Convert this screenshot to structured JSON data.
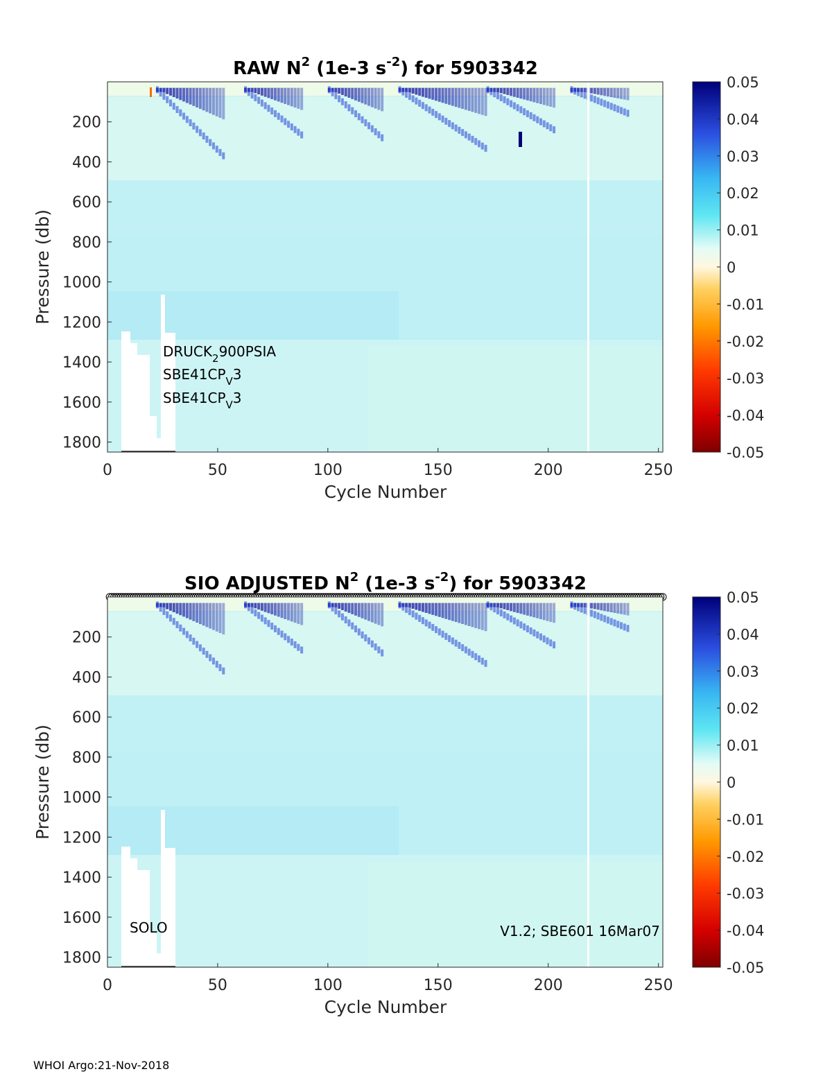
{
  "chart_data": [
    {
      "type": "heatmap",
      "title": {
        "prefix": "RAW N",
        "sup1": "2",
        "mid": " (1e-3 s",
        "sup2": "-2",
        "suffix": ") for 5903342"
      },
      "xlabel": "Cycle Number",
      "ylabel": "Pressure (db)",
      "xlim": [
        0,
        252
      ],
      "ylim": [
        1850,
        0
      ],
      "xticks": [
        "0",
        "50",
        "100",
        "150",
        "200",
        "250"
      ],
      "yticks": [
        "200",
        "400",
        "600",
        "800",
        "1000",
        "1200",
        "1400",
        "1600",
        "1800"
      ],
      "colorbar": {
        "min": -0.05,
        "max": 0.05,
        "ticks": [
          "0.05",
          "0.04",
          "0.03",
          "0.02",
          "0.01",
          "0",
          "-0.01",
          "-0.02",
          "-0.03",
          "-0.04",
          "-0.05"
        ]
      },
      "annotations": [
        {
          "base": "DRUCK",
          "sub": "2",
          "rest": "900PSIA"
        },
        {
          "base": "SBE41CP",
          "sub": "V",
          "rest": "3"
        },
        {
          "base": "SBE41CP",
          "sub": "V",
          "rest": "3"
        }
      ],
      "gap_cycles": [
        218
      ]
    },
    {
      "type": "heatmap",
      "title": {
        "prefix": "SIO  ADJUSTED N",
        "sup1": "2",
        "mid": " (1e-3 s",
        "sup2": "-2",
        "suffix": ") for 5903342"
      },
      "xlabel": "Cycle Number",
      "ylabel": "Pressure (db)",
      "xlim": [
        0,
        252
      ],
      "ylim": [
        1850,
        0
      ],
      "xticks": [
        "0",
        "50",
        "100",
        "150",
        "200",
        "250"
      ],
      "yticks": [
        "200",
        "400",
        "600",
        "800",
        "1000",
        "1200",
        "1400",
        "1600",
        "1800"
      ],
      "colorbar": {
        "min": -0.05,
        "max": 0.05,
        "ticks": [
          "0.05",
          "0.04",
          "0.03",
          "0.02",
          "0.01",
          "0",
          "-0.01",
          "-0.02",
          "-0.03",
          "-0.04",
          "-0.05"
        ]
      },
      "left_label": "SOLO",
      "right_label": "V1.2; SBE601 16Mar07",
      "gap_cycles": [
        218
      ]
    }
  ],
  "footer": "WHOI Argo:21-Nov-2018"
}
